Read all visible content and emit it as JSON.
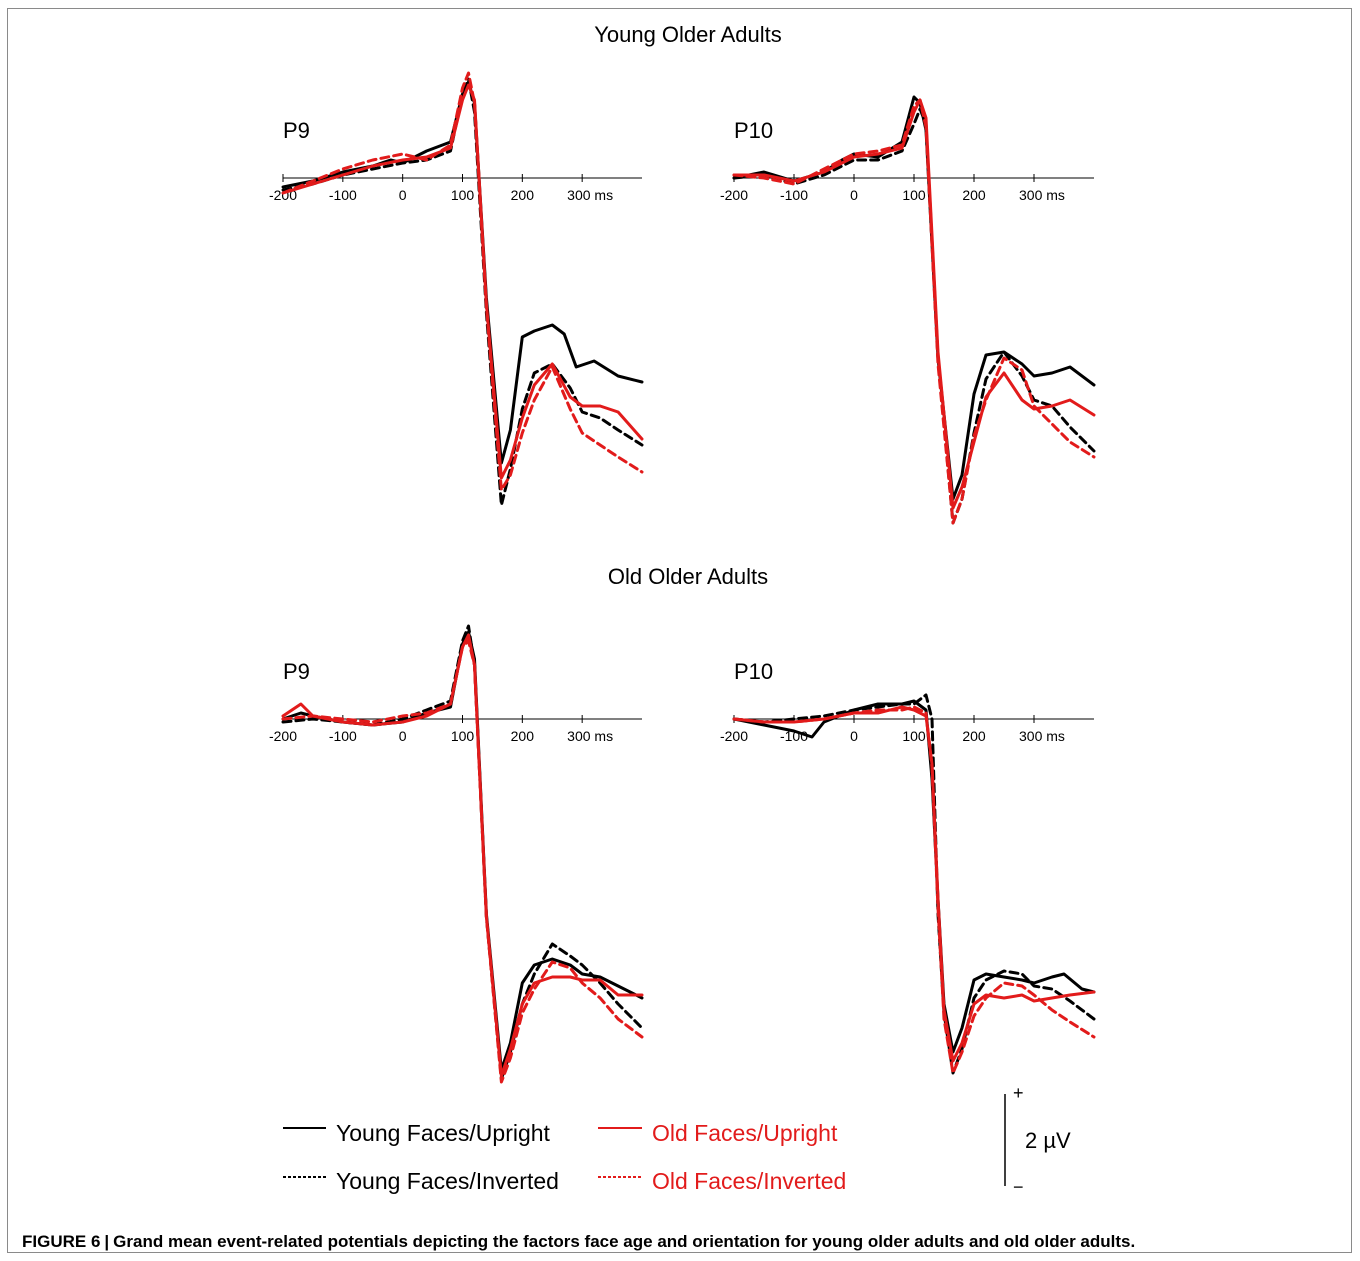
{
  "caption": {
    "label": "FIGURE 6",
    "separator": "|",
    "text": "Grand mean event-related potentials depicting the factors face age and orientation for young older adults and old older adults."
  },
  "legend": {
    "young_upright": "Young Faces/Upright",
    "young_inverted": "Young Faces/Inverted",
    "old_upright": "Old Faces/Upright",
    "old_inverted": "Old Faces/Inverted"
  },
  "scale_bar": {
    "plus": "+",
    "minus": "−",
    "label": "2 µV",
    "value_uv": 2
  },
  "colors": {
    "black": "#000000",
    "red": "#e21b1b"
  },
  "chart_data": [
    {
      "type": "line",
      "group_title": "Young Older Adults",
      "title": "P9",
      "x_ticks": [
        "-200",
        "-100",
        "0",
        "100",
        "200",
        "300 ms"
      ],
      "xlim": [
        -200,
        400
      ],
      "y_unit": "µV",
      "series": [
        {
          "name": "Young Faces/Upright",
          "color": "#000000",
          "dash": false,
          "x": [
            -200,
            -150,
            -100,
            -50,
            -20,
            0,
            40,
            80,
            100,
            110,
            120,
            140,
            165,
            180,
            200,
            220,
            250,
            270,
            290,
            320,
            360,
            400
          ],
          "y": [
            -0.3,
            -0.1,
            0.2,
            0.4,
            0.6,
            0.5,
            0.9,
            1.2,
            2.8,
            3.2,
            2.5,
            -4.0,
            -9.5,
            -8.4,
            -5.3,
            -5.1,
            -4.9,
            -5.2,
            -6.3,
            -6.1,
            -6.6,
            -6.8
          ]
        },
        {
          "name": "Young Faces/Inverted",
          "color": "#000000",
          "dash": true,
          "x": [
            -200,
            -150,
            -100,
            -50,
            0,
            40,
            80,
            100,
            110,
            120,
            140,
            165,
            180,
            200,
            220,
            250,
            280,
            300,
            330,
            360,
            400
          ],
          "y": [
            -0.4,
            -0.2,
            0.1,
            0.3,
            0.5,
            0.6,
            0.9,
            2.8,
            3.3,
            2.2,
            -4.5,
            -10.9,
            -9.7,
            -7.7,
            -6.5,
            -6.2,
            -7.0,
            -7.8,
            -8.0,
            -8.4,
            -8.9
          ]
        },
        {
          "name": "Old Faces/Upright",
          "color": "#e21b1b",
          "dash": false,
          "x": [
            -200,
            -150,
            -100,
            -50,
            0,
            40,
            80,
            100,
            110,
            120,
            140,
            165,
            180,
            200,
            220,
            250,
            280,
            300,
            330,
            360,
            400
          ],
          "y": [
            -0.5,
            -0.2,
            0.1,
            0.4,
            0.6,
            0.7,
            1.0,
            2.6,
            3.1,
            2.6,
            -4.2,
            -10.0,
            -9.4,
            -8.0,
            -6.9,
            -6.2,
            -7.3,
            -7.6,
            -7.6,
            -7.8,
            -8.7
          ]
        },
        {
          "name": "Old Faces/Inverted",
          "color": "#e21b1b",
          "dash": true,
          "x": [
            -200,
            -150,
            -100,
            -50,
            0,
            40,
            80,
            100,
            110,
            120,
            140,
            165,
            180,
            200,
            220,
            250,
            280,
            300,
            330,
            360,
            400
          ],
          "y": [
            -0.5,
            -0.1,
            0.3,
            0.6,
            0.8,
            0.6,
            1.1,
            3.0,
            3.5,
            2.5,
            -4.3,
            -10.4,
            -9.9,
            -8.5,
            -7.4,
            -6.3,
            -7.7,
            -8.5,
            -8.9,
            -9.3,
            -9.8
          ]
        }
      ]
    },
    {
      "type": "line",
      "group_title": "Young Older Adults",
      "title": "P10",
      "x_ticks": [
        "-200",
        "-100",
        "0",
        "100",
        "200",
        "300 ms"
      ],
      "xlim": [
        -200,
        400
      ],
      "y_unit": "µV",
      "series": [
        {
          "name": "Young Faces/Upright",
          "color": "#000000",
          "dash": false,
          "x": [
            -200,
            -150,
            -100,
            -50,
            -20,
            0,
            40,
            80,
            100,
            110,
            120,
            140,
            165,
            180,
            200,
            220,
            250,
            280,
            300,
            330,
            360,
            400
          ],
          "y": [
            0.0,
            0.2,
            -0.1,
            0.2,
            0.6,
            0.8,
            0.7,
            1.2,
            2.7,
            2.5,
            1.6,
            -6.0,
            -10.7,
            -9.9,
            -7.2,
            -5.9,
            -5.8,
            -6.2,
            -6.6,
            -6.5,
            -6.3,
            -6.9
          ]
        },
        {
          "name": "Young Faces/Inverted",
          "color": "#000000",
          "dash": true,
          "x": [
            -200,
            -150,
            -100,
            -50,
            0,
            40,
            80,
            100,
            110,
            120,
            140,
            165,
            180,
            200,
            220,
            250,
            280,
            300,
            330,
            360,
            400
          ],
          "y": [
            0.0,
            0.1,
            -0.2,
            0.1,
            0.6,
            0.6,
            0.9,
            1.8,
            2.3,
            1.8,
            -6.0,
            -11.5,
            -10.7,
            -8.5,
            -6.7,
            -5.8,
            -6.6,
            -7.4,
            -7.6,
            -8.3,
            -9.1
          ]
        },
        {
          "name": "Old Faces/Upright",
          "color": "#e21b1b",
          "dash": false,
          "x": [
            -200,
            -150,
            -100,
            -50,
            0,
            40,
            80,
            100,
            110,
            120,
            140,
            165,
            180,
            200,
            220,
            250,
            280,
            300,
            330,
            360,
            400
          ],
          "y": [
            0.1,
            0.1,
            -0.1,
            0.2,
            0.7,
            0.8,
            1.0,
            2.2,
            2.6,
            2.0,
            -5.8,
            -11.0,
            -10.3,
            -8.8,
            -7.3,
            -6.5,
            -7.4,
            -7.7,
            -7.6,
            -7.4,
            -7.9
          ]
        },
        {
          "name": "Old Faces/Inverted",
          "color": "#e21b1b",
          "dash": true,
          "x": [
            -200,
            -150,
            -100,
            -50,
            0,
            40,
            80,
            100,
            110,
            120,
            140,
            165,
            180,
            200,
            220,
            250,
            280,
            300,
            330,
            360,
            400
          ],
          "y": [
            0.1,
            0.0,
            -0.2,
            0.3,
            0.8,
            0.9,
            1.1,
            2.4,
            2.6,
            1.7,
            -6.2,
            -11.5,
            -10.7,
            -8.6,
            -7.4,
            -6.0,
            -6.4,
            -7.6,
            -8.2,
            -8.8,
            -9.3
          ]
        }
      ]
    },
    {
      "type": "line",
      "group_title": "Old Older Adults",
      "title": "P9",
      "x_ticks": [
        "-200",
        "-100",
        "0",
        "100",
        "200",
        "300 ms"
      ],
      "xlim": [
        -200,
        400
      ],
      "y_unit": "µV",
      "series": [
        {
          "name": "Young Faces/Upright",
          "color": "#000000",
          "dash": false,
          "x": [
            -200,
            -170,
            -150,
            -100,
            -50,
            0,
            40,
            80,
            100,
            110,
            120,
            140,
            165,
            180,
            200,
            220,
            250,
            280,
            300,
            330,
            360,
            400
          ],
          "y": [
            0.0,
            0.2,
            0.1,
            -0.1,
            -0.2,
            -0.1,
            0.2,
            0.4,
            2.5,
            2.9,
            2.0,
            -6.5,
            -11.7,
            -10.8,
            -8.8,
            -8.2,
            -8.0,
            -8.2,
            -8.5,
            -8.6,
            -8.9,
            -9.3
          ]
        },
        {
          "name": "Young Faces/Inverted",
          "color": "#000000",
          "dash": true,
          "x": [
            -200,
            -150,
            -100,
            -50,
            0,
            40,
            80,
            100,
            110,
            120,
            140,
            165,
            180,
            200,
            220,
            250,
            280,
            300,
            330,
            360,
            400
          ],
          "y": [
            -0.1,
            0.0,
            -0.1,
            -0.2,
            0.0,
            0.3,
            0.6,
            2.6,
            3.1,
            1.8,
            -6.6,
            -12.0,
            -11.1,
            -9.5,
            -8.5,
            -7.5,
            -7.9,
            -8.2,
            -8.8,
            -9.5,
            -10.3
          ]
        },
        {
          "name": "Old Faces/Upright",
          "color": "#e21b1b",
          "dash": false,
          "x": [
            -200,
            -170,
            -150,
            -100,
            -50,
            0,
            40,
            80,
            100,
            110,
            120,
            140,
            165,
            180,
            200,
            220,
            250,
            280,
            300,
            330,
            360,
            400
          ],
          "y": [
            0.1,
            0.5,
            0.1,
            -0.1,
            -0.2,
            -0.1,
            0.1,
            0.5,
            2.4,
            2.8,
            1.8,
            -6.6,
            -11.9,
            -11.0,
            -9.5,
            -8.8,
            -8.6,
            -8.6,
            -8.7,
            -8.7,
            -9.2,
            -9.2
          ]
        },
        {
          "name": "Old Faces/Inverted",
          "color": "#e21b1b",
          "dash": true,
          "x": [
            -200,
            -150,
            -100,
            -50,
            0,
            40,
            80,
            100,
            110,
            120,
            140,
            165,
            180,
            200,
            220,
            250,
            280,
            300,
            330,
            360,
            400
          ],
          "y": [
            0.0,
            0.1,
            0.0,
            -0.1,
            0.1,
            0.2,
            0.5,
            2.4,
            2.6,
            1.8,
            -6.6,
            -12.1,
            -11.3,
            -9.8,
            -9.0,
            -8.1,
            -8.3,
            -8.8,
            -9.3,
            -10.0,
            -10.6
          ]
        }
      ]
    },
    {
      "type": "line",
      "group_title": "Old Older Adults",
      "title": "P10",
      "x_ticks": [
        "-200",
        "-100",
        "0",
        "100",
        "200",
        "300 ms"
      ],
      "xlim": [
        -200,
        400
      ],
      "y_unit": "µV",
      "series": [
        {
          "name": "Young Faces/Upright",
          "color": "#000000",
          "dash": false,
          "x": [
            -200,
            -150,
            -100,
            -70,
            -50,
            0,
            40,
            80,
            100,
            120,
            130,
            140,
            150,
            165,
            180,
            200,
            220,
            250,
            280,
            300,
            330,
            350,
            380,
            400
          ],
          "y": [
            0.0,
            -0.2,
            -0.4,
            -0.6,
            -0.1,
            0.3,
            0.5,
            0.5,
            0.6,
            0.3,
            -2.0,
            -6.0,
            -9.5,
            -11.1,
            -10.3,
            -8.7,
            -8.5,
            -8.6,
            -8.7,
            -8.8,
            -8.6,
            -8.5,
            -9.0,
            -9.1
          ]
        },
        {
          "name": "Young Faces/Inverted",
          "color": "#000000",
          "dash": true,
          "x": [
            -200,
            -150,
            -100,
            -50,
            0,
            40,
            80,
            100,
            120,
            130,
            140,
            150,
            165,
            180,
            200,
            220,
            250,
            280,
            300,
            330,
            360,
            400
          ],
          "y": [
            0.0,
            -0.1,
            0.0,
            0.1,
            0.3,
            0.4,
            0.5,
            0.5,
            0.8,
            0.0,
            -6.5,
            -9.8,
            -11.8,
            -11.0,
            -9.3,
            -8.7,
            -8.4,
            -8.5,
            -8.9,
            -9.0,
            -9.4,
            -10.0
          ]
        },
        {
          "name": "Old Faces/Upright",
          "color": "#e21b1b",
          "dash": false,
          "x": [
            -200,
            -150,
            -100,
            -50,
            0,
            40,
            80,
            100,
            120,
            130,
            140,
            150,
            165,
            180,
            200,
            220,
            250,
            280,
            300,
            330,
            360,
            400
          ],
          "y": [
            0.0,
            -0.1,
            -0.1,
            0.0,
            0.2,
            0.2,
            0.4,
            0.3,
            0.1,
            -1.5,
            -6.0,
            -9.7,
            -11.4,
            -10.8,
            -9.5,
            -9.2,
            -9.3,
            -9.2,
            -9.4,
            -9.3,
            -9.2,
            -9.1
          ]
        },
        {
          "name": "Old Faces/Inverted",
          "color": "#e21b1b",
          "dash": true,
          "x": [
            -200,
            -150,
            -100,
            -50,
            0,
            40,
            80,
            100,
            120,
            130,
            140,
            150,
            165,
            180,
            200,
            220,
            250,
            280,
            300,
            330,
            360,
            400
          ],
          "y": [
            0.0,
            -0.1,
            -0.1,
            0.0,
            0.2,
            0.3,
            0.3,
            0.4,
            0.2,
            -1.6,
            -6.3,
            -10.0,
            -11.8,
            -11.1,
            -9.9,
            -9.3,
            -8.8,
            -8.9,
            -9.2,
            -9.7,
            -10.1,
            -10.6
          ]
        }
      ]
    }
  ]
}
